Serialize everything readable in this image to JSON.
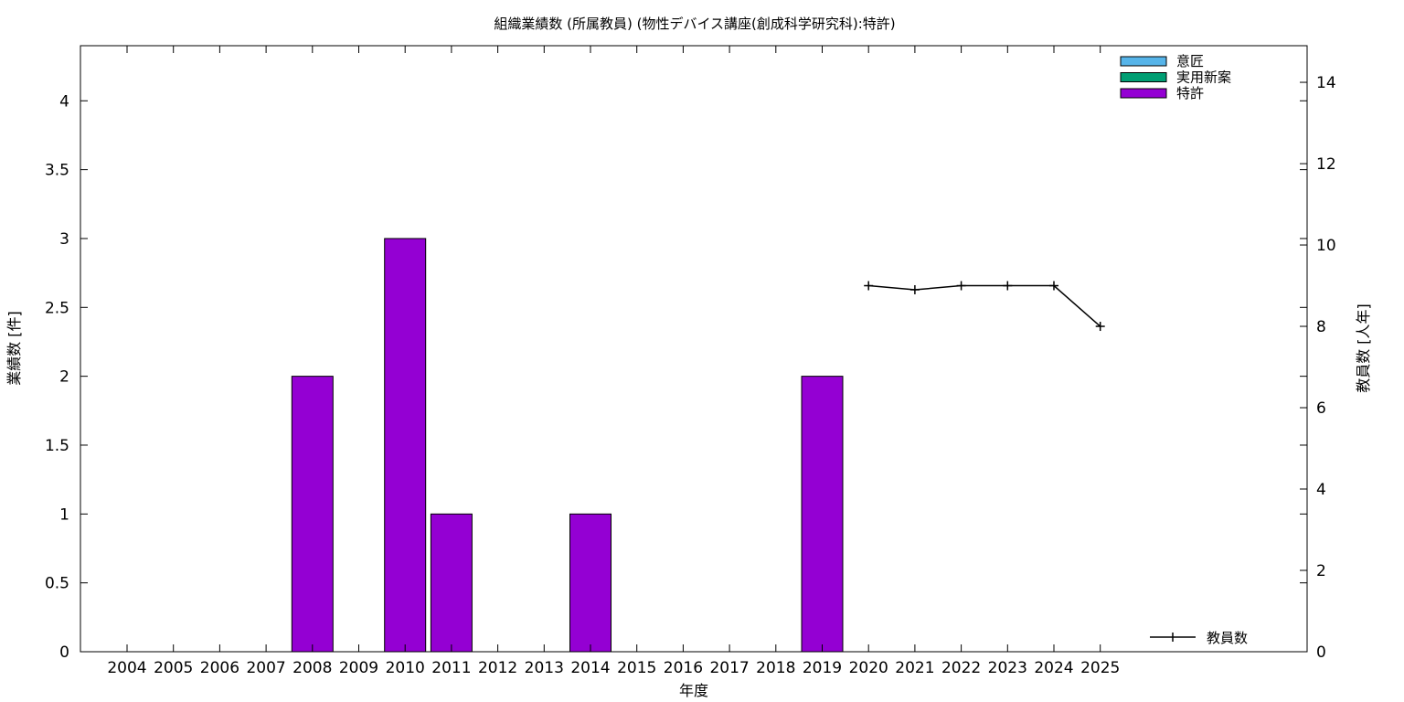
{
  "chart_data": {
    "type": "bar",
    "title": "組織業績数 (所属教員) (物性デバイス講座(創成科学研究科):特許)",
    "xlabel": "年度",
    "ylabel": "業績数 [件]",
    "y2label": "教員数 [人年]",
    "categories": [
      "2004",
      "2005",
      "2006",
      "2007",
      "2008",
      "2009",
      "2010",
      "2011",
      "2012",
      "2013",
      "2014",
      "2015",
      "2016",
      "2017",
      "2018",
      "2019",
      "2020",
      "2021",
      "2022",
      "2023",
      "2024",
      "2025"
    ],
    "ylim": [
      0,
      4.4
    ],
    "yticks": [
      "0",
      "0.5",
      "1",
      "1.5",
      "2",
      "2.5",
      "3",
      "3.5",
      "4"
    ],
    "y2lim": [
      0,
      14.9
    ],
    "y2ticks": [
      "0",
      "2",
      "4",
      "6",
      "8",
      "10",
      "12",
      "14"
    ],
    "grid": false,
    "legend_position": "top-right",
    "series": [
      {
        "name": "意匠",
        "color": "#56b4e9",
        "values": [
          0,
          0,
          0,
          0,
          0,
          0,
          0,
          0,
          0,
          0,
          0,
          0,
          0,
          0,
          0,
          0,
          0,
          0,
          0,
          0,
          0,
          0
        ]
      },
      {
        "name": "実用新案",
        "color": "#009e73",
        "values": [
          0,
          0,
          0,
          0,
          0,
          0,
          0,
          0,
          0,
          0,
          0,
          0,
          0,
          0,
          0,
          0,
          0,
          0,
          0,
          0,
          0,
          0
        ]
      },
      {
        "name": "特許",
        "color": "#9400d3",
        "values": [
          0,
          0,
          0,
          0,
          2,
          0,
          3,
          1,
          0,
          0,
          1,
          0,
          0,
          0,
          0,
          2,
          0,
          0,
          0,
          0,
          0,
          0
        ]
      }
    ],
    "line_series": {
      "name": "教員数",
      "legend_position": "bottom-right",
      "axis": "y2",
      "color": "#000000",
      "x": [
        "2020",
        "2021",
        "2022",
        "2023",
        "2024",
        "2025"
      ],
      "values": [
        9,
        8.9,
        9,
        9,
        9,
        8
      ]
    }
  }
}
